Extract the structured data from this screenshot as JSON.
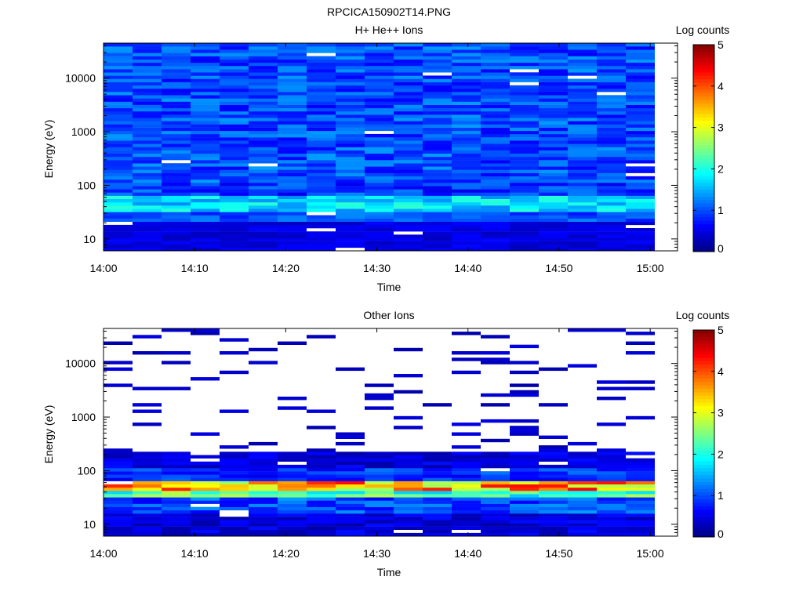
{
  "figure": {
    "title": "RPCICA150902T14.PNG"
  },
  "colorbar": {
    "label": "Log counts",
    "range": [
      0,
      5
    ],
    "ticks": [
      "0",
      "1",
      "2",
      "3",
      "4",
      "5"
    ],
    "colormap": [
      "#00007f",
      "#0000ff",
      "#007fff",
      "#00ffff",
      "#7fff7f",
      "#ffff00",
      "#ff7f00",
      "#ff0000",
      "#7f0000"
    ]
  },
  "chart_data": [
    {
      "type": "heatmap",
      "title": "H+ He++ Ions",
      "xlabel": "Time",
      "ylabel": "Energy (eV)",
      "yscale": "log",
      "xlim": [
        "14:00",
        "15:03"
      ],
      "ylim": [
        6,
        45000
      ],
      "x_ticks": [
        "14:00",
        "14:10",
        "14:20",
        "14:30",
        "14:40",
        "14:50",
        "15:00"
      ],
      "y_ticks": [
        "10",
        "100",
        "1000",
        "10000"
      ],
      "color_scale": "Log counts, 0 to 5",
      "time_columns": [
        "14:00",
        "14:03",
        "14:06",
        "14:10",
        "14:13",
        "14:16",
        "14:19",
        "14:23",
        "14:26",
        "14:29",
        "14:32",
        "14:36",
        "14:39",
        "14:42",
        "14:45",
        "14:49",
        "14:52",
        "14:55",
        "14:58"
      ],
      "summary": "Log counts mostly between 0.6 and 1.4 across all energies; higher (about 1.3 to 2.0) between 30 and 60 eV; lowest (about 0.3 to 0.6) below 20 eV"
    },
    {
      "type": "heatmap",
      "title": "Other Ions",
      "xlabel": "Time",
      "ylabel": "Energy (eV)",
      "yscale": "log",
      "xlim": [
        "14:00",
        "15:03"
      ],
      "ylim": [
        6,
        45000
      ],
      "x_ticks": [
        "14:00",
        "14:10",
        "14:20",
        "14:30",
        "14:40",
        "14:50",
        "15:00"
      ],
      "y_ticks": [
        "10",
        "100",
        "1000",
        "10000"
      ],
      "color_scale": "Log counts, 0 to 5",
      "time_columns": [
        "14:00",
        "14:03",
        "14:06",
        "14:10",
        "14:13",
        "14:16",
        "14:19",
        "14:23",
        "14:26",
        "14:29",
        "14:32",
        "14:36",
        "14:39",
        "14:42",
        "14:45",
        "14:49",
        "14:52",
        "14:55",
        "14:58"
      ],
      "summary": "Sparse counts (about 0.2 to 0.5) above 200 eV; continuous counts from about 6 to 180 eV; peak log counts about 3.5 to 4.5 between 40 and 60 eV"
    }
  ]
}
